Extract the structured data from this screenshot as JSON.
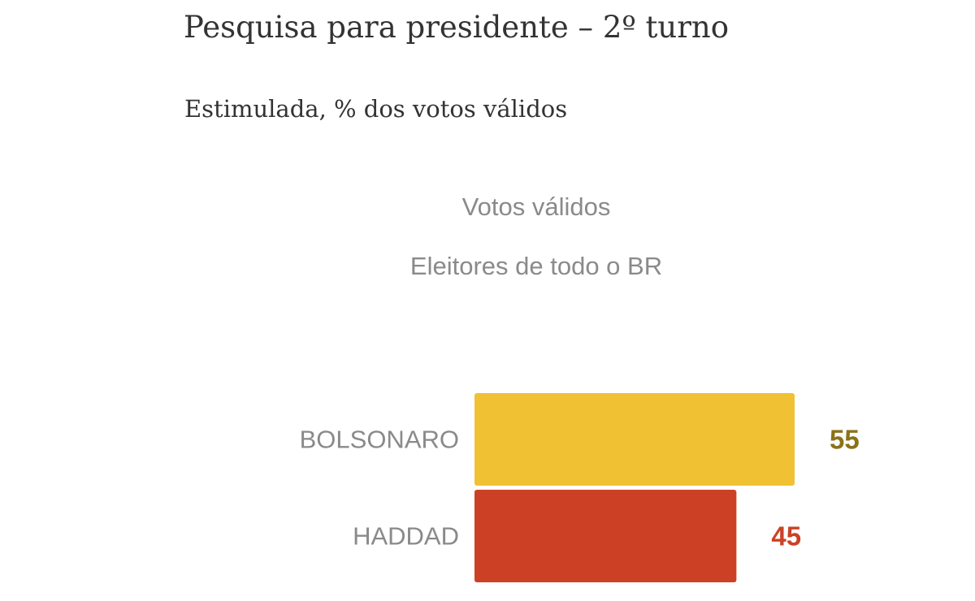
{
  "header": {
    "title": "Pesquisa para presidente – 2º turno",
    "subtitle": "Estimulada, % dos votos válidos"
  },
  "controls": {
    "votes_label": "Votos válidos",
    "voters_label": "Eleitores de todo o BR"
  },
  "chart_data": {
    "type": "bar",
    "orientation": "horizontal",
    "categories": [
      "BOLSONARO",
      "HADDAD"
    ],
    "values": [
      55,
      45
    ],
    "value_labels": [
      "55",
      "45"
    ],
    "colors": [
      "#f0c132",
      "#cc4125"
    ],
    "label_colors": [
      "#8a7219",
      "#cc4125"
    ],
    "xlim": [
      0,
      55
    ],
    "grid": false,
    "legend": "none"
  }
}
